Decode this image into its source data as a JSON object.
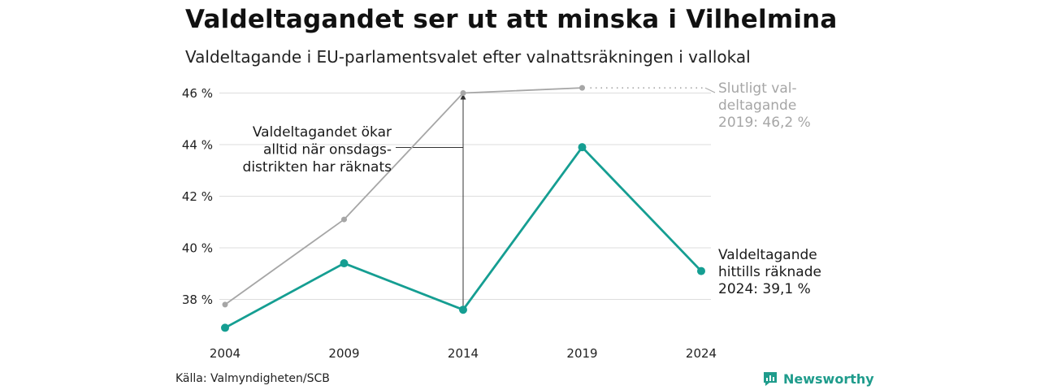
{
  "header": {
    "title": "Valdeltagandet ser ut att minska i Vilhelmina",
    "subtitle": "Valdeltagande i EU-parlamentsvalet efter valnattsräkningen i vallokal"
  },
  "footer": {
    "source": "Källa: Valmyndigheten/SCB",
    "brand": "Newsworthy",
    "brand_icon": "bar-chart-speech-icon"
  },
  "colors": {
    "final_series": "#a6a6a6",
    "counted_series": "#159e92",
    "grid": "#dddddd",
    "brand": "#1f9c8c"
  },
  "chart_data": {
    "type": "line",
    "title": "Valdeltagandet ser ut att minska i Vilhelmina",
    "subtitle": "Valdeltagande i EU-parlamentsvalet efter valnattsräkningen i vallokal",
    "x": [
      "2004",
      "2009",
      "2014",
      "2019",
      "2024"
    ],
    "ylim": [
      36.8,
      46.6
    ],
    "yticks": [
      38,
      40,
      42,
      44,
      46
    ],
    "ytick_labels": [
      "38 %",
      "40 %",
      "42 %",
      "44 %",
      "46 %"
    ],
    "grid": true,
    "series": [
      {
        "key": "final",
        "values": [
          37.8,
          41.1,
          46.0,
          46.2,
          null
        ],
        "label_lines": [
          "Slutligt val-",
          "deltagande",
          "2019: 46,2 %"
        ]
      },
      {
        "key": "counted",
        "values": [
          36.9,
          39.4,
          37.6,
          43.9,
          39.1
        ],
        "label_lines": [
          "Valdeltagande",
          "hittills räknade",
          "2024: 39,1 %"
        ]
      }
    ],
    "annotation": {
      "lines": [
        "Valdeltagandet ökar",
        "alltid när onsdags-",
        "distrikten har räknats"
      ],
      "year": "2014"
    }
  }
}
